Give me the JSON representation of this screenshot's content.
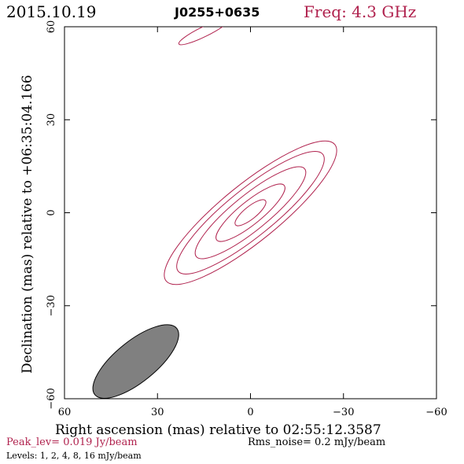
{
  "header": {
    "date": "2015.10.19",
    "source": "J0255+0635",
    "freq": "Freq: 4.3 GHz"
  },
  "colors": {
    "accent": "#b0224e",
    "axis": "#000000",
    "beam_fill": "#808080"
  },
  "chart_data": {
    "type": "contour",
    "xlabel": "Right ascension (mas) relative to 02:55:12.3587",
    "ylabel": "Declination (mas) relative to +06:35:04.166",
    "xlim": [
      60,
      -60
    ],
    "ylim": [
      -60,
      60
    ],
    "xticks": [
      60,
      30,
      0,
      -30,
      -60
    ],
    "yticks": [
      -60,
      -30,
      0,
      30,
      60
    ],
    "xtick_labels": [
      "60",
      "30",
      "0",
      "−30",
      "−60"
    ],
    "ytick_labels": [
      "−60",
      "−30",
      "0",
      "30",
      "60"
    ],
    "contour_levels_mjy_per_beam": [
      1,
      2,
      4,
      8,
      16
    ],
    "source_component": {
      "center_x_mas": 0,
      "center_y_mas": 0,
      "position_angle_deg": 51,
      "contours": [
        {
          "level": 1,
          "major_mas": 35,
          "minor_mas": 9.2
        },
        {
          "level": 2,
          "major_mas": 30,
          "minor_mas": 7.6
        },
        {
          "level": 4,
          "major_mas": 22.5,
          "minor_mas": 5.7
        },
        {
          "level": 8,
          "major_mas": 14,
          "minor_mas": 3.7
        },
        {
          "level": 16,
          "major_mas": 6.2,
          "minor_mas": 2.0
        }
      ]
    },
    "edge_contour": {
      "level": 1,
      "center_x_mas": 15,
      "center_y_mas": 58.4,
      "major_mas": 9,
      "minor_mas": 1.6,
      "position_angle_deg": 64
    },
    "beam": {
      "center_x_mas": 37,
      "center_y_mas": -48,
      "major_mas": 17,
      "minor_mas": 6.6,
      "position_angle_deg": 51
    }
  },
  "footer": {
    "peak": "Peak_lev=  0.019 Jy/beam",
    "rms": "Rms_noise=   0.2 mJy/beam",
    "levels": "Levels:   1,    2,    4,    8,   16 mJy/beam"
  }
}
